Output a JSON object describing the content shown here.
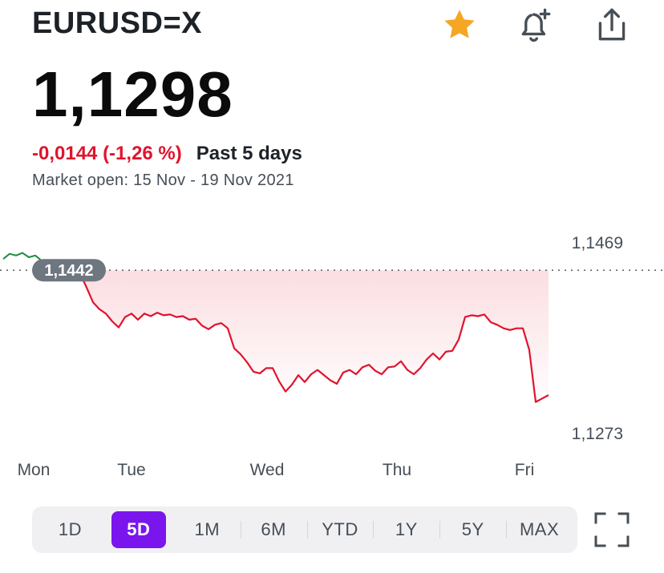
{
  "header": {
    "ticker": "EURUSD=X",
    "icons": [
      "star-icon",
      "bell-plus-icon",
      "share-icon"
    ],
    "star_color": "#f5a623"
  },
  "quote": {
    "price": "1,1298",
    "change": "-0,0144 (-1,26 %)",
    "period": "Past 5 days",
    "market_status": "Market open: 15 Nov - 19 Nov 2021"
  },
  "colors": {
    "down": "#e0142c",
    "up": "#1e8a3c",
    "accent": "#7b15ee"
  },
  "chart_data": {
    "type": "line",
    "x_labels": [
      "Mon",
      "Tue",
      "Wed",
      "Thu",
      "Fri"
    ],
    "previous_close": 1.1442,
    "previous_close_label": "1,1442",
    "high_label": "1,1469",
    "low_label": "1,1273",
    "y_high": 1.1469,
    "y_low": 1.1273,
    "points": [
      [
        0.0,
        1.1455
      ],
      [
        0.05,
        1.1461
      ],
      [
        0.1,
        1.1459
      ],
      [
        0.15,
        1.1462
      ],
      [
        0.2,
        1.1457
      ],
      [
        0.25,
        1.1459
      ],
      [
        0.3,
        1.1453
      ],
      [
        0.35,
        1.1449
      ],
      [
        0.4,
        1.1452
      ],
      [
        0.45,
        1.1447
      ],
      [
        0.5,
        1.1451
      ],
      [
        0.55,
        1.1443
      ],
      [
        0.6,
        1.1438
      ],
      [
        0.65,
        1.1422
      ],
      [
        0.7,
        1.1405
      ],
      [
        0.75,
        1.1397
      ],
      [
        0.8,
        1.1392
      ],
      [
        0.85,
        1.1383
      ],
      [
        0.9,
        1.1376
      ],
      [
        0.95,
        1.1388
      ],
      [
        1.0,
        1.1392
      ],
      [
        1.05,
        1.1385
      ],
      [
        1.1,
        1.1392
      ],
      [
        1.15,
        1.1389
      ],
      [
        1.2,
        1.1393
      ],
      [
        1.25,
        1.139
      ],
      [
        1.3,
        1.1391
      ],
      [
        1.35,
        1.1388
      ],
      [
        1.4,
        1.1389
      ],
      [
        1.45,
        1.1385
      ],
      [
        1.5,
        1.1386
      ],
      [
        1.55,
        1.1378
      ],
      [
        1.6,
        1.1374
      ],
      [
        1.65,
        1.1379
      ],
      [
        1.7,
        1.1381
      ],
      [
        1.75,
        1.1375
      ],
      [
        1.8,
        1.1352
      ],
      [
        1.85,
        1.1345
      ],
      [
        1.9,
        1.1336
      ],
      [
        1.95,
        1.1325
      ],
      [
        2.0,
        1.1323
      ],
      [
        2.05,
        1.1329
      ],
      [
        2.1,
        1.1329
      ],
      [
        2.15,
        1.1314
      ],
      [
        2.2,
        1.1302
      ],
      [
        2.25,
        1.131
      ],
      [
        2.3,
        1.1321
      ],
      [
        2.35,
        1.1313
      ],
      [
        2.4,
        1.1322
      ],
      [
        2.45,
        1.1327
      ],
      [
        2.5,
        1.1321
      ],
      [
        2.55,
        1.1315
      ],
      [
        2.6,
        1.1311
      ],
      [
        2.65,
        1.1324
      ],
      [
        2.7,
        1.1327
      ],
      [
        2.75,
        1.1322
      ],
      [
        2.8,
        1.133
      ],
      [
        2.85,
        1.1333
      ],
      [
        2.9,
        1.1326
      ],
      [
        2.95,
        1.1322
      ],
      [
        3.0,
        1.133
      ],
      [
        3.05,
        1.1331
      ],
      [
        3.1,
        1.1337
      ],
      [
        3.15,
        1.1327
      ],
      [
        3.2,
        1.1322
      ],
      [
        3.25,
        1.1329
      ],
      [
        3.3,
        1.1339
      ],
      [
        3.35,
        1.1346
      ],
      [
        3.4,
        1.1339
      ],
      [
        3.45,
        1.1348
      ],
      [
        3.5,
        1.1349
      ],
      [
        3.55,
        1.1362
      ],
      [
        3.6,
        1.1388
      ],
      [
        3.65,
        1.139
      ],
      [
        3.7,
        1.1389
      ],
      [
        3.75,
        1.1391
      ],
      [
        3.8,
        1.1382
      ],
      [
        3.85,
        1.1379
      ],
      [
        3.9,
        1.1375
      ],
      [
        3.95,
        1.1373
      ],
      [
        4.0,
        1.1375
      ],
      [
        4.05,
        1.1375
      ],
      [
        4.1,
        1.135
      ],
      [
        4.15,
        1.129
      ],
      [
        4.2,
        1.1294
      ],
      [
        4.25,
        1.1298
      ]
    ]
  },
  "ranges": {
    "items": [
      "1D",
      "5D",
      "1M",
      "6M",
      "YTD",
      "1Y",
      "5Y",
      "MAX"
    ],
    "active": "5D"
  },
  "fullscreen_icon": "fullscreen-icon"
}
